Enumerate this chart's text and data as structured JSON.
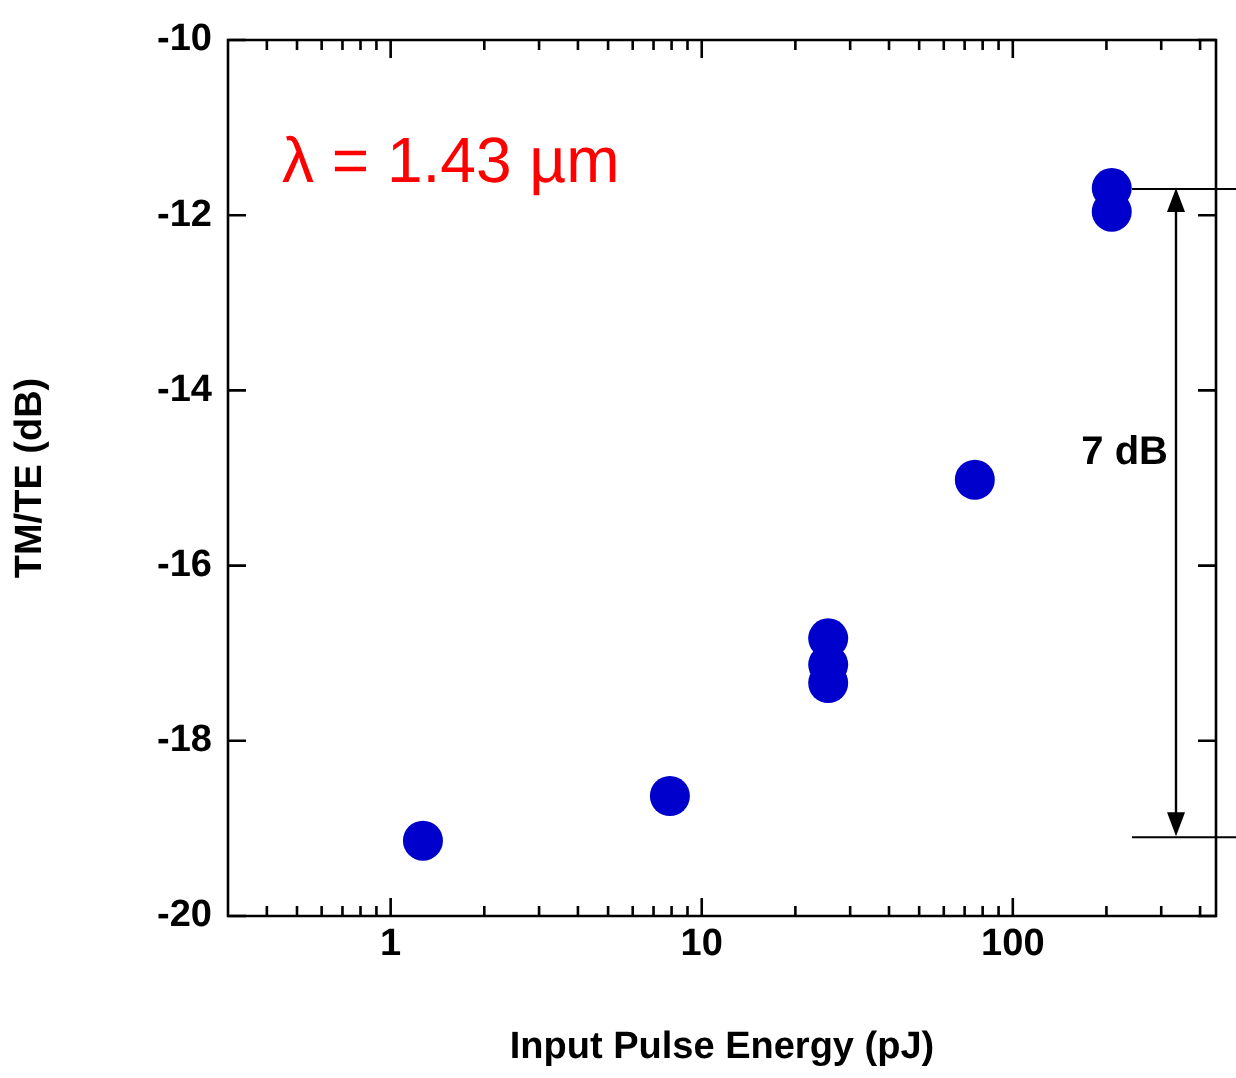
{
  "chart_data": {
    "type": "scatter",
    "xlabel": "Input Pulse Energy (pJ)",
    "ylabel": "TM/TE (dB)",
    "x": [
      1.27,
      7.9,
      25.5,
      25.5,
      25.5,
      75.5,
      208,
      208
    ],
    "series": [
      {
        "color": "#0000cc",
        "values": [
          -19.14,
          -18.63,
          -16.83,
          -17.13,
          -17.34,
          -15.02,
          -11.69,
          -11.96
        ]
      }
    ],
    "marker": "circle",
    "log": "x",
    "xlim": [
      0.3,
      450
    ],
    "xticks": [
      {
        "value": 0.4,
        "label": null
      },
      {
        "value": 0.5,
        "label": null
      },
      {
        "value": 0.6,
        "label": null
      },
      {
        "value": 0.7,
        "label": null
      },
      {
        "value": 0.8,
        "label": null
      },
      {
        "value": 0.9,
        "label": null
      },
      1,
      {
        "value": 2,
        "label": null
      },
      {
        "value": 3,
        "label": null
      },
      {
        "value": 4,
        "label": null
      },
      {
        "value": 5,
        "label": null
      },
      {
        "value": 6,
        "label": null
      },
      {
        "value": 7,
        "label": null
      },
      {
        "value": 8,
        "label": null
      },
      {
        "value": 9,
        "label": null
      },
      10,
      {
        "value": 20,
        "label": null
      },
      {
        "value": 30,
        "label": null
      },
      {
        "value": 40,
        "label": null
      },
      {
        "value": 50,
        "label": null
      },
      {
        "value": 60,
        "label": null
      },
      {
        "value": 70,
        "label": null
      },
      {
        "value": 80,
        "label": null
      },
      {
        "value": 90,
        "label": null
      },
      100,
      {
        "value": 200,
        "label": null
      },
      {
        "value": 300,
        "label": null
      },
      {
        "value": 400,
        "label": null
      }
    ],
    "ylim": [
      -20,
      -10
    ],
    "yticks": [
      -20,
      -18,
      -16,
      -14,
      -12,
      -10
    ],
    "ref_lines": [
      {
        "axis": "y",
        "value": -11.7,
        "color": "#000000"
      },
      {
        "axis": "y",
        "value": -19.1,
        "color": "#000000"
      }
    ],
    "annotations": [
      "λ = 1.43 µm",
      "7 dB"
    ]
  }
}
